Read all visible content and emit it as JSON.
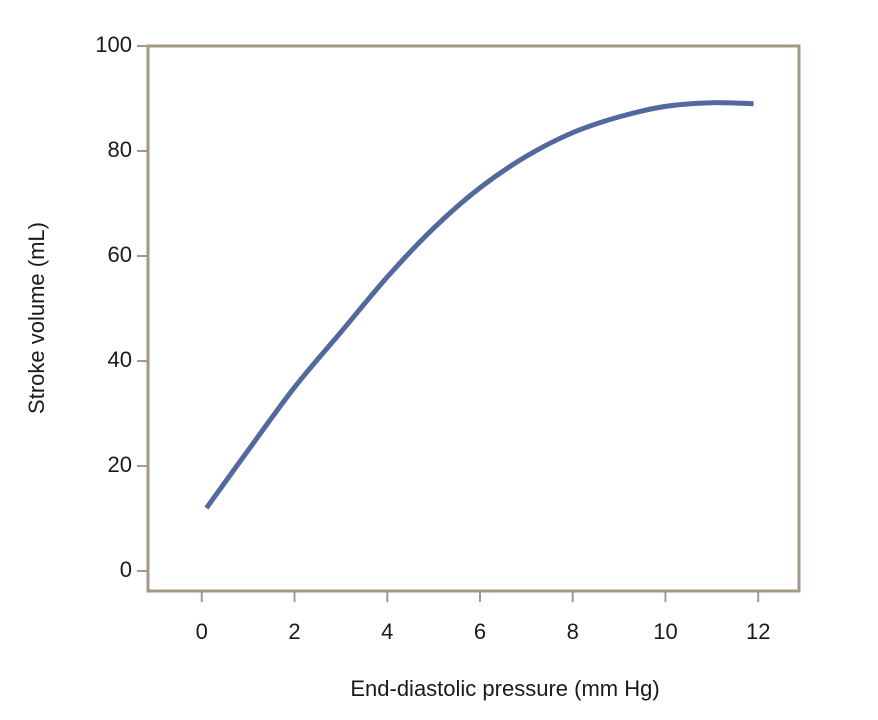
{
  "chart_data": {
    "type": "line",
    "x_label": "End-diastolic pressure (mm Hg)",
    "y_label": "Stroke volume (mL)",
    "x": [
      0.1,
      1,
      2,
      3,
      4,
      5,
      6,
      7,
      8,
      9,
      10,
      11,
      11.9
    ],
    "series": [
      {
        "color": "#52689e",
        "values": [
          12,
          23,
          35,
          45.5,
          56,
          65.3,
          73,
          79,
          83.5,
          86.5,
          88.5,
          89.2,
          89
        ]
      }
    ],
    "xlim": [
      -1.16,
      12.88
    ],
    "xticks": [
      0,
      2,
      4,
      6,
      8,
      10,
      12
    ],
    "ylim": [
      -3.8,
      100
    ],
    "yticks": [
      0,
      20,
      40,
      60,
      80,
      100
    ],
    "frame_color": "#a39885"
  }
}
